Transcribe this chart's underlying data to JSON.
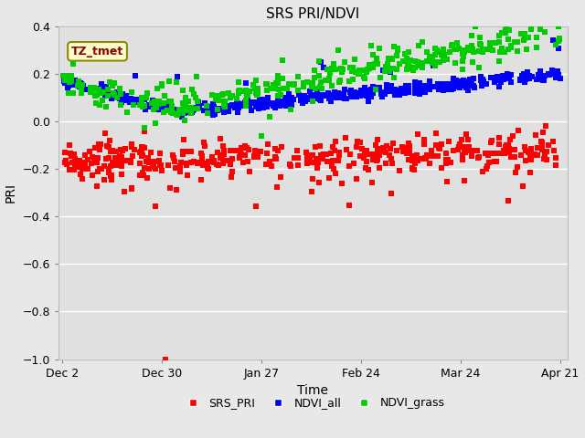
{
  "title": "SRS PRI/NDVI",
  "xlabel": "Time",
  "ylabel": "PRI",
  "ylim": [
    -1.0,
    0.4
  ],
  "yticks": [
    0.4,
    0.2,
    0.0,
    -0.2,
    -0.4,
    -0.6,
    -0.8,
    -1.0
  ],
  "annotation_text": "TZ_tmet",
  "annotation_color": "#8B0000",
  "annotation_bg": "#FFFFCC",
  "annotation_border": "#8B8B00",
  "colors": {
    "SRS_PRI": "#FF0000",
    "NDVI_all": "#0000FF",
    "NDVI_grass": "#00CC00"
  },
  "fig_bg": "#E8E8E8",
  "axes_bg": "#E0E0E0",
  "grid_color": "#FFFFFF",
  "marker_size": 4,
  "seed": 42
}
